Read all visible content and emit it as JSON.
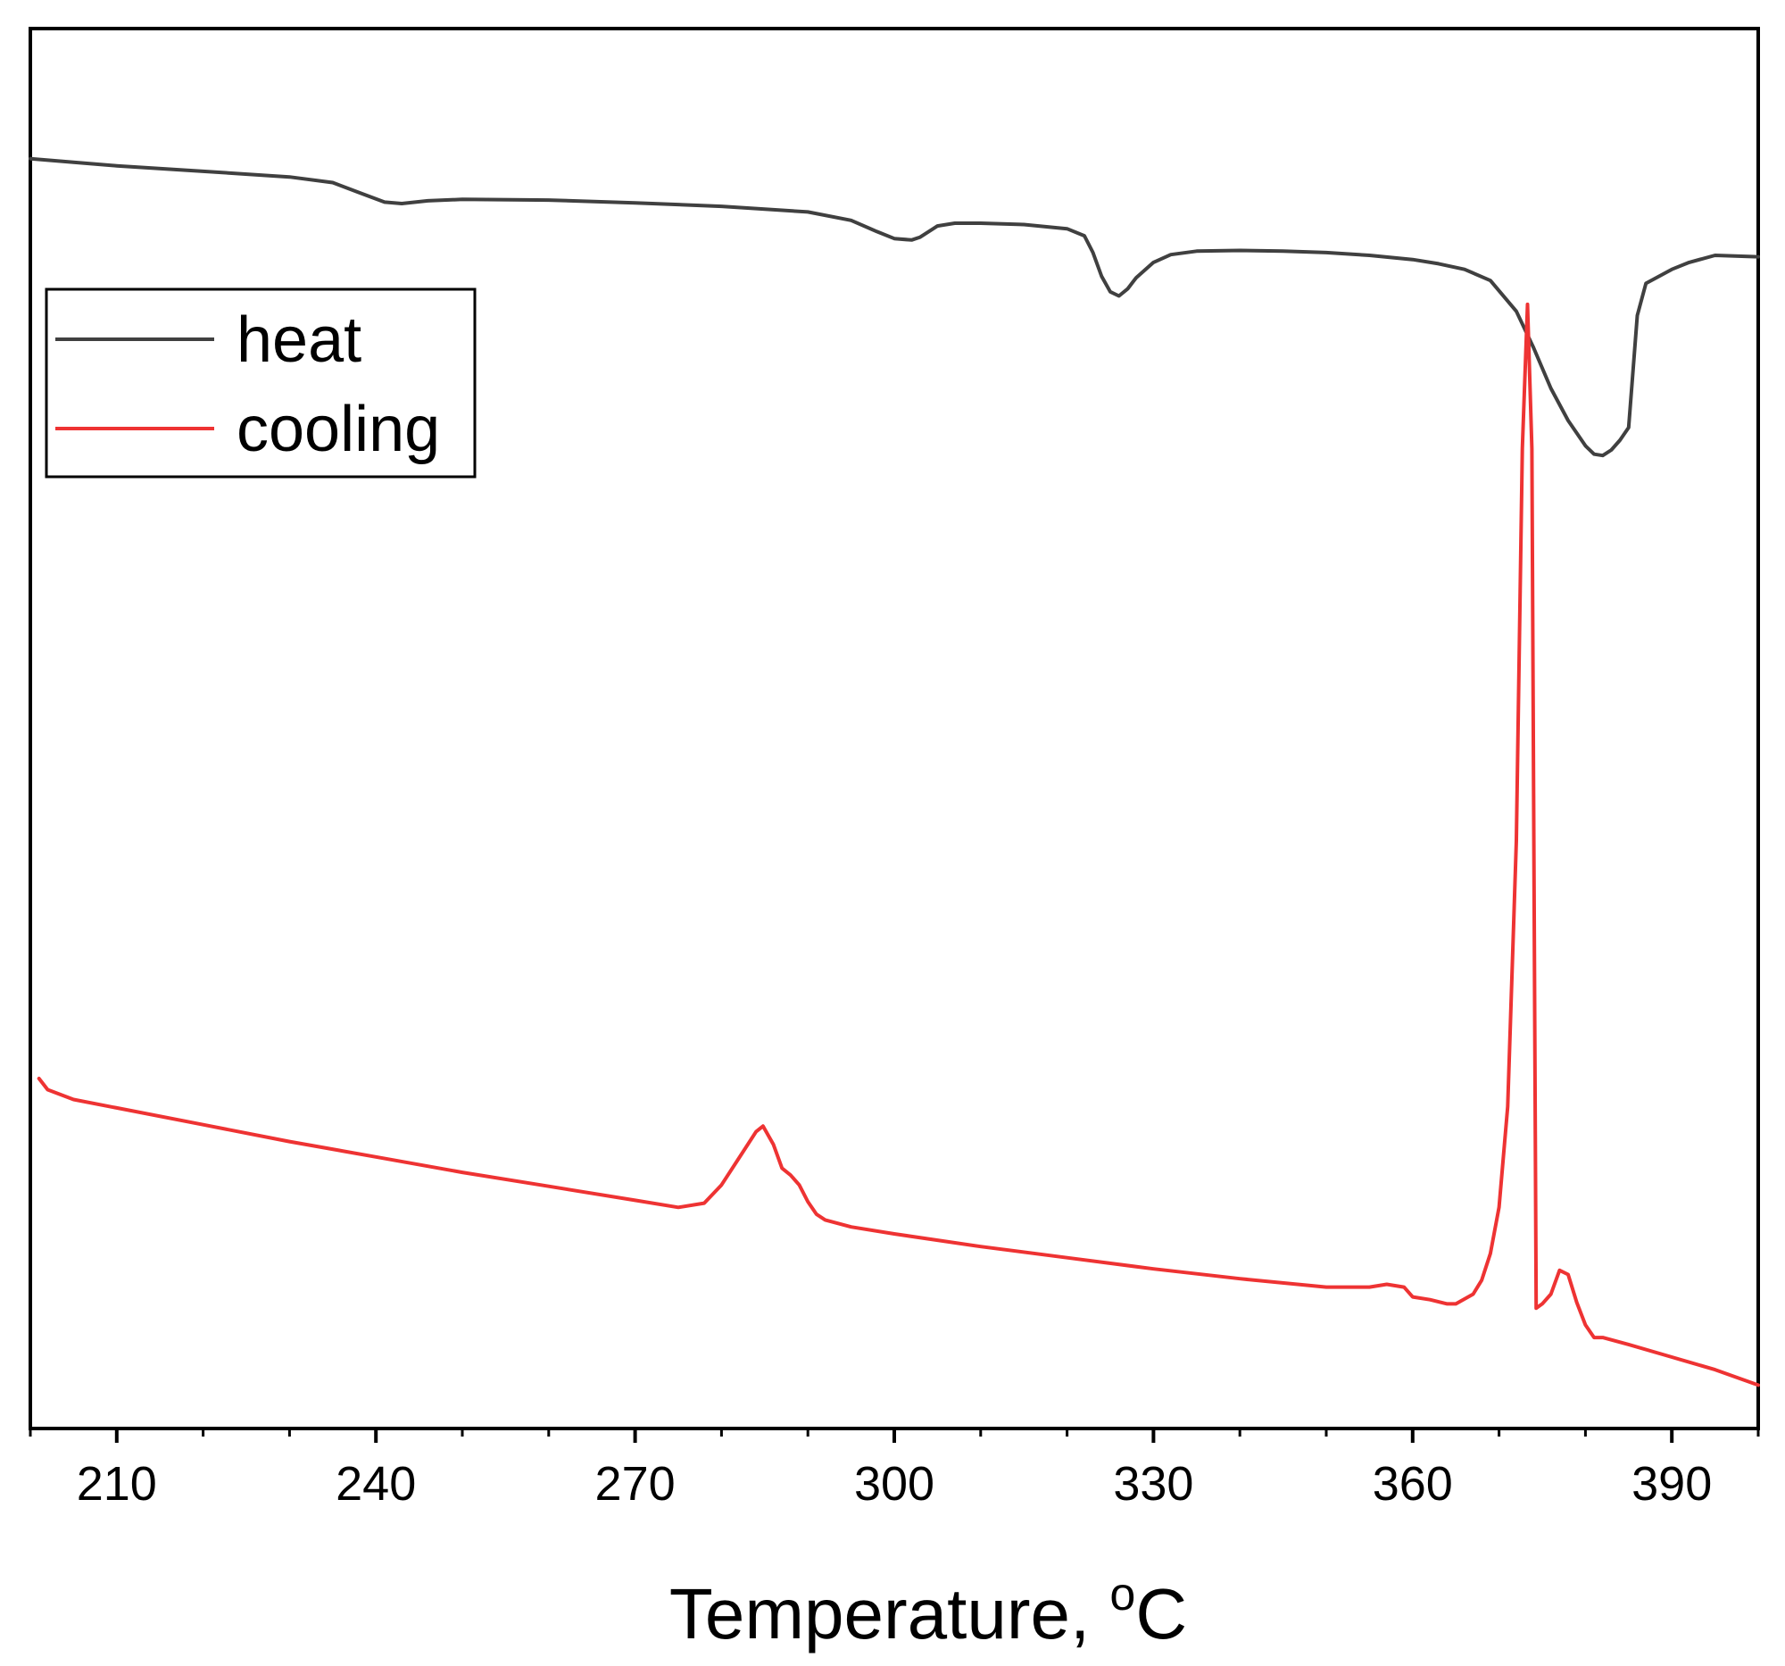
{
  "chart_data": {
    "type": "line",
    "title": "",
    "xlabel": "Temperature, ",
    "xlabel_unit_sup": "o",
    "xlabel_unit": "C",
    "ylabel": "",
    "xlim": [
      200,
      400
    ],
    "ylim": [
      0,
      100
    ],
    "y_ticks_shown": false,
    "x_ticks": [
      210,
      240,
      270,
      300,
      330,
      360,
      390
    ],
    "x_tick_labels": [
      "210",
      "240",
      "270",
      "300",
      "330",
      "360",
      "390"
    ],
    "x_minor_ticks": [
      200,
      220,
      230,
      250,
      260,
      280,
      290,
      310,
      320,
      340,
      350,
      370,
      380,
      400
    ],
    "grid": false,
    "legend_position": "upper-left",
    "series": [
      {
        "name": "heat",
        "color": "#404040",
        "x": [
          200,
          205,
          210,
          220,
          230,
          235,
          238,
          241,
          243,
          246,
          250,
          260,
          270,
          280,
          290,
          295,
          298,
          300,
          302,
          303,
          305,
          307,
          310,
          315,
          320,
          322,
          323,
          324,
          325,
          326,
          327,
          328,
          330,
          332,
          335,
          340,
          345,
          350,
          355,
          360,
          363,
          366,
          369,
          372,
          374,
          376,
          378,
          380,
          381,
          382,
          383,
          384,
          385,
          386,
          387,
          390,
          392,
          395,
          400
        ],
        "y": [
          90.7,
          90.45,
          90.2,
          89.8,
          89.4,
          89.0,
          88.3,
          87.6,
          87.5,
          87.7,
          87.8,
          87.75,
          87.55,
          87.3,
          86.9,
          86.3,
          85.5,
          85.0,
          84.9,
          85.1,
          85.9,
          86.1,
          86.1,
          86.0,
          85.7,
          85.2,
          84.0,
          82.3,
          81.2,
          80.9,
          81.4,
          82.2,
          83.3,
          83.85,
          84.1,
          84.15,
          84.1,
          84.0,
          83.8,
          83.5,
          83.2,
          82.8,
          82.0,
          79.8,
          77.2,
          74.3,
          72.0,
          70.2,
          69.6,
          69.5,
          69.9,
          70.6,
          71.5,
          79.5,
          81.8,
          82.8,
          83.3,
          83.8,
          83.7
        ]
      },
      {
        "name": "cooling",
        "color": "#ee3333",
        "x": [
          201,
          202,
          205,
          210,
          220,
          230,
          240,
          250,
          260,
          270,
          275,
          278,
          280,
          282,
          284,
          284.8,
          286,
          287,
          288,
          289,
          290,
          291,
          292,
          295,
          300,
          310,
          320,
          330,
          340,
          350,
          355,
          357,
          359,
          360,
          362,
          364,
          365,
          367,
          368,
          369,
          370,
          371,
          372,
          372.7,
          373.3,
          373.8,
          374.3,
          375,
          376,
          377,
          378,
          379,
          380,
          381,
          382,
          385,
          390,
          395,
          400
        ],
        "y": [
          25.0,
          24.2,
          23.5,
          22.9,
          21.7,
          20.5,
          19.4,
          18.3,
          17.3,
          16.3,
          15.8,
          16.1,
          17.4,
          19.3,
          21.2,
          21.6,
          20.3,
          18.6,
          18.1,
          17.4,
          16.2,
          15.3,
          14.9,
          14.4,
          13.9,
          13.0,
          12.2,
          11.4,
          10.7,
          10.1,
          10.1,
          10.3,
          10.1,
          9.4,
          9.2,
          8.9,
          8.9,
          9.6,
          10.6,
          12.5,
          15.8,
          23.0,
          42.0,
          70.0,
          80.3,
          70.0,
          8.6,
          8.9,
          9.6,
          11.3,
          11.0,
          9.0,
          7.4,
          6.5,
          6.5,
          6.0,
          5.1,
          4.2,
          3.1
        ]
      }
    ]
  }
}
